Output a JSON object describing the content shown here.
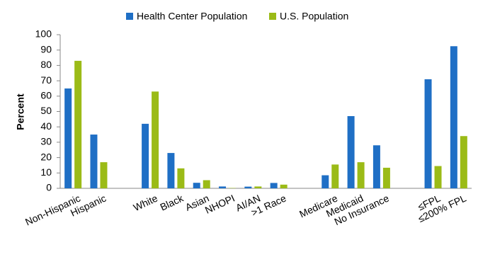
{
  "chart_data": {
    "type": "bar",
    "y_label": "Percent",
    "categories": [
      "Non-Hispanic",
      "Hispanic",
      null,
      "White",
      "Black",
      "Asian",
      "NHOPI",
      "AI/AN",
      ">1 Race",
      null,
      "Medicare",
      "Medicaid",
      "No Insurance",
      null,
      "≤FPL",
      "≤200% FPL"
    ],
    "series": [
      {
        "name": "Health Center Population",
        "color": "#1f6fc5",
        "values": [
          65,
          35,
          null,
          42,
          23,
          3.6,
          1.2,
          1.1,
          3.5,
          null,
          8.5,
          47,
          28,
          null,
          71,
          92.5
        ]
      },
      {
        "name": "U.S. Population",
        "color": "#9bbb17",
        "values": [
          83,
          17,
          null,
          63,
          13,
          5.3,
          0.2,
          1.2,
          2.4,
          null,
          15.5,
          17,
          13.4,
          null,
          14.5,
          34
        ]
      }
    ],
    "ylim": [
      0,
      100
    ],
    "yticks": [
      0,
      10,
      20,
      30,
      40,
      50,
      60,
      70,
      80,
      90,
      100
    ],
    "grid": false
  }
}
